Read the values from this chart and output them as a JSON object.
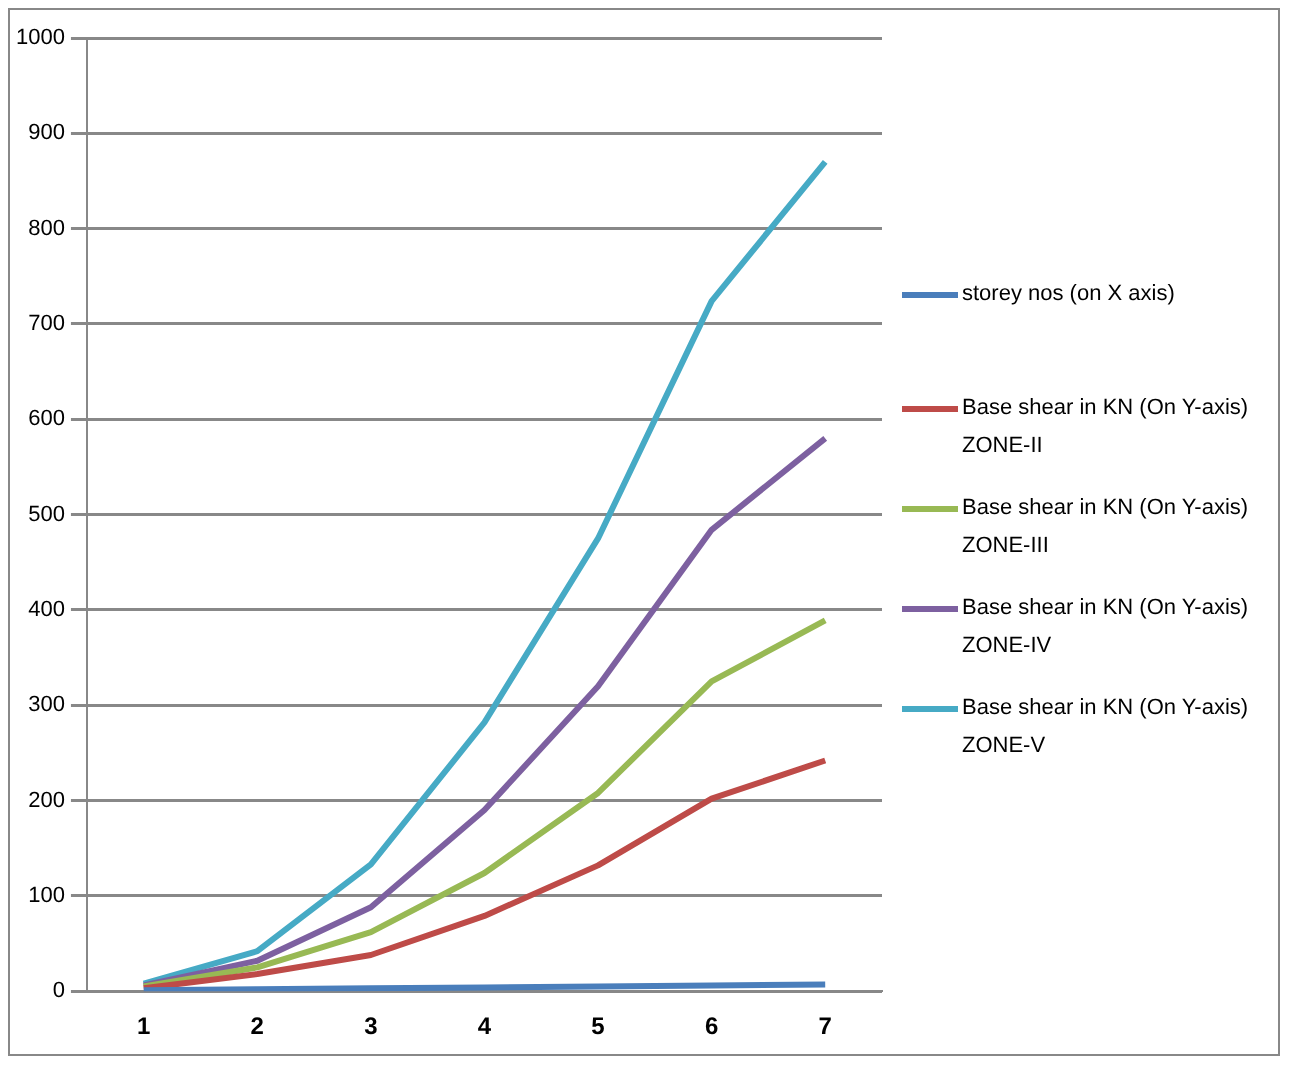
{
  "chart_data": {
    "type": "line",
    "categories": [
      "1",
      "2",
      "3",
      "4",
      "5",
      "6",
      "7"
    ],
    "series": [
      {
        "name": "storey nos (on X axis)",
        "color": "#4a7ebb",
        "values": [
          1,
          2,
          3,
          4,
          5,
          6,
          7
        ]
      },
      {
        "name": "Base shear in KN (On Y-axis) ZONE-II",
        "color": "#be4b48",
        "values": [
          3,
          18,
          38,
          79,
          132,
          202,
          242
        ]
      },
      {
        "name": "Base shear in KN (On Y-axis) ZONE-III",
        "color": "#98b954",
        "values": [
          5,
          25,
          62,
          124,
          208,
          325,
          389
        ]
      },
      {
        "name": "Base shear in KN (On Y-axis) ZONE-IV",
        "color": "#7d60a0",
        "values": [
          6,
          32,
          88,
          190,
          320,
          484,
          580
        ]
      },
      {
        "name": "Base shear in KN (On Y-axis) ZONE-V",
        "color": "#46aac5",
        "values": [
          8,
          42,
          133,
          282,
          475,
          724,
          870
        ]
      }
    ],
    "ylim": [
      0,
      1000
    ],
    "yticks": [
      0,
      100,
      200,
      300,
      400,
      500,
      600,
      700,
      800,
      900,
      1000
    ],
    "grid": "y",
    "legend": "right",
    "marker": "none",
    "line_style": "solid"
  }
}
